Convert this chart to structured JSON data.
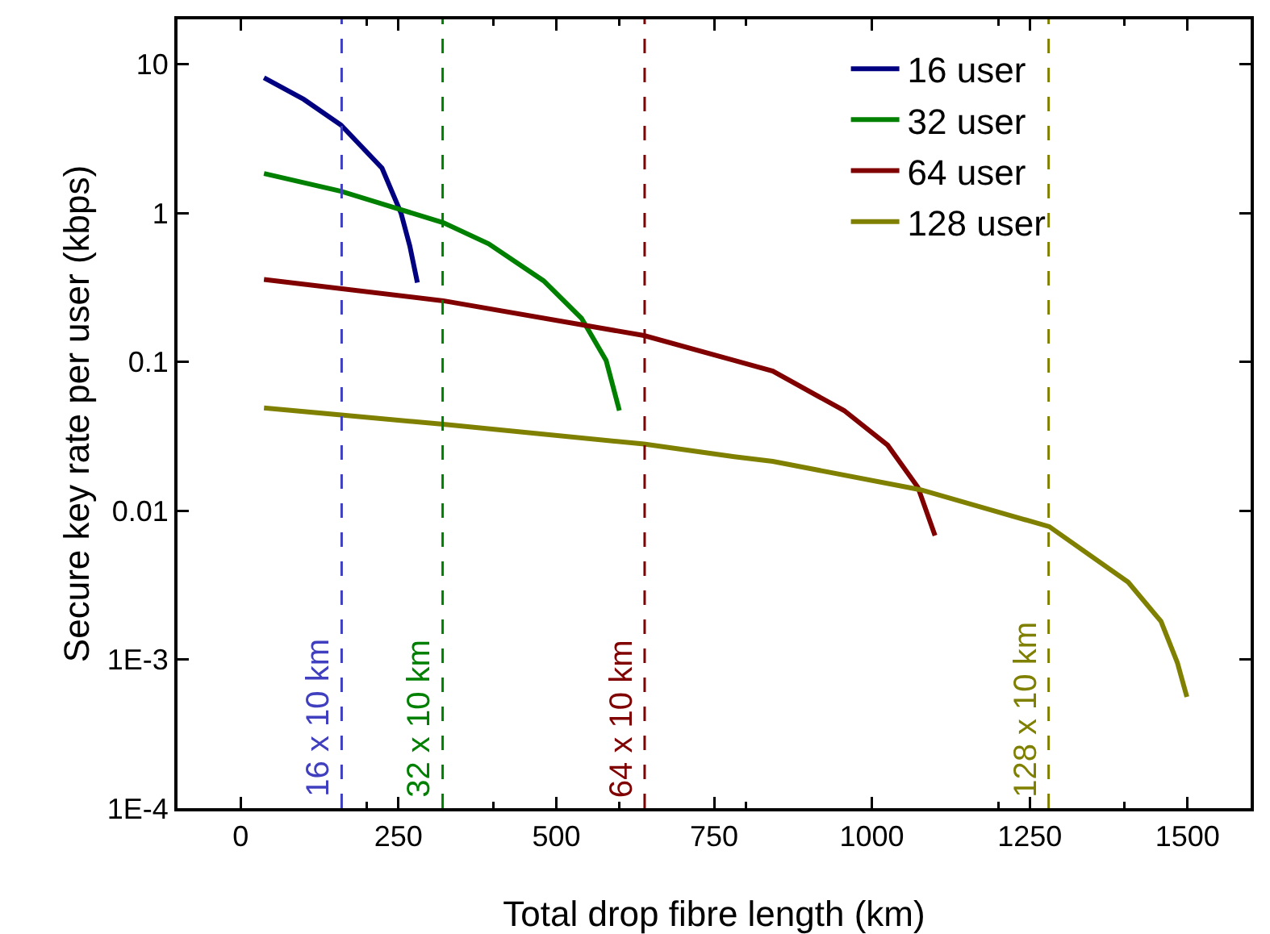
{
  "chart_data": {
    "type": "line",
    "xlabel": "Total drop fibre length (km)",
    "ylabel": "Secure key rate per user (kbps)",
    "log": "y",
    "grid": false,
    "legend": "top right",
    "line_style": "solid",
    "marker": "none",
    "xlim": [
      -100,
      1600
    ],
    "xticks": [
      0,
      250,
      500,
      750,
      1000,
      1250,
      1500
    ],
    "ylim": [
      0.0001,
      20
    ],
    "yticks": [
      10,
      1,
      0.1,
      0.01,
      {
        "value": 0.001,
        "label": "1E-3"
      },
      {
        "value": 0.0001,
        "label": "1E-4"
      }
    ],
    "series": [
      {
        "name": "16 user",
        "color": "#000080",
        "x": [
          37,
          100,
          159,
          224,
          254,
          268,
          280
        ],
        "values": [
          8.1,
          5.8,
          3.9,
          2.0,
          1.0,
          0.6,
          0.34
        ]
      },
      {
        "name": "32 user",
        "color": "#008000",
        "x": [
          37,
          159,
          321,
          393,
          480,
          540,
          579,
          600
        ],
        "values": [
          1.84,
          1.4,
          0.86,
          0.62,
          0.35,
          0.196,
          0.102,
          0.047
        ]
      },
      {
        "name": "64 user",
        "color": "#800000",
        "x": [
          37,
          321,
          639,
          782,
          843,
          956,
          1025,
          1073,
          1100
        ],
        "values": [
          0.357,
          0.257,
          0.15,
          0.102,
          0.0865,
          0.047,
          0.0275,
          0.0143,
          0.0068
        ]
      },
      {
        "name": "128 user",
        "color": "#808000",
        "x": [
          37,
          321,
          639,
          782,
          843,
          1077,
          1281,
          1406,
          1458,
          1484,
          1499
        ],
        "values": [
          0.049,
          0.038,
          0.028,
          0.023,
          0.0214,
          0.0138,
          0.0078,
          0.0033,
          0.0018,
          0.00095,
          0.00056
        ]
      }
    ],
    "ref_lines": [
      {
        "axis": "x",
        "value": 160,
        "label": "16 x 10 km",
        "color": "#3f3fbf",
        "line_style": "dashed"
      },
      {
        "axis": "x",
        "value": 320,
        "label": "32 x 10 km",
        "color": "#008000",
        "line_style": "dashed"
      },
      {
        "axis": "x",
        "value": 640,
        "label": "64 x 10 km",
        "color": "#800000",
        "line_style": "dashed"
      },
      {
        "axis": "x",
        "value": 1280,
        "label": "128 x 10 km",
        "color": "#808000",
        "line_style": "dashed"
      }
    ]
  }
}
